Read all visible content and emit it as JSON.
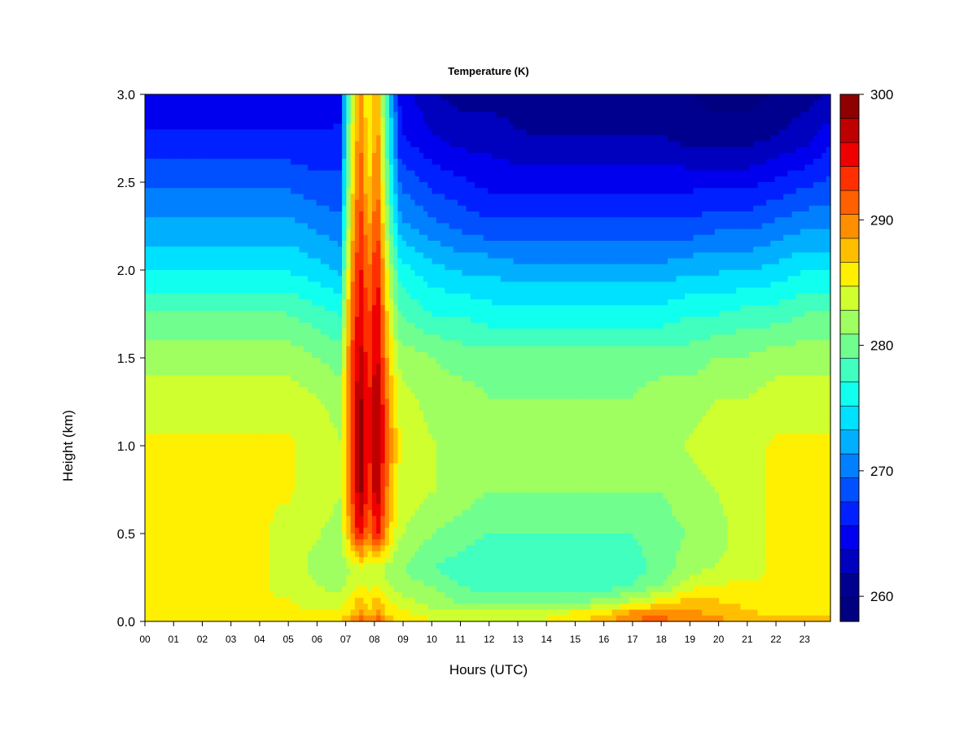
{
  "chart_data": {
    "type": "heatmap",
    "title": "Temperature (K)",
    "xlabel": "Hours (UTC)",
    "ylabel": "Height (km)",
    "xlim": [
      0,
      23.9
    ],
    "ylim": [
      0,
      3.0
    ],
    "x_ticks": [
      0,
      1,
      2,
      3,
      4,
      5,
      6,
      7,
      8,
      9,
      10,
      11,
      12,
      13,
      14,
      15,
      16,
      17,
      18,
      19,
      20,
      21,
      22,
      23
    ],
    "x_tick_labels": [
      "00",
      "01",
      "02",
      "03",
      "04",
      "05",
      "06",
      "07",
      "08",
      "09",
      "10",
      "11",
      "12",
      "13",
      "14",
      "15",
      "16",
      "17",
      "18",
      "19",
      "20",
      "21",
      "22",
      "23"
    ],
    "y_ticks": [
      0,
      0.5,
      1.0,
      1.5,
      2.0,
      2.5,
      3.0
    ],
    "y_tick_labels": [
      "0.0",
      "0.5",
      "1.0",
      "1.5",
      "2.0",
      "2.5",
      "3.0"
    ],
    "colorbar": {
      "range": [
        258,
        300
      ],
      "ticks": [
        260,
        270,
        280,
        290,
        300
      ],
      "tick_labels": [
        "260",
        "270",
        "280",
        "290",
        "300"
      ],
      "colors": [
        "#000080",
        "#00008f",
        "#0000bf",
        "#0000ef",
        "#0020ff",
        "#0050ff",
        "#0080ff",
        "#00b0ff",
        "#00e0ff",
        "#10ffef",
        "#40ffbf",
        "#70ff8f",
        "#a0ff60",
        "#d0ff30",
        "#ffef00",
        "#ffbf00",
        "#ff8f00",
        "#ff6000",
        "#ff3000",
        "#ef0000",
        "#bf0000",
        "#8f0000"
      ]
    },
    "grid": false,
    "temperature_grid": {
      "x_hours": [
        0,
        1,
        2,
        3,
        4,
        5,
        6,
        6.8,
        7.2,
        7.5,
        7.8,
        8.1,
        8.5,
        8.9,
        10,
        11,
        12,
        13,
        14,
        15,
        16,
        17,
        18,
        19,
        20,
        21,
        22,
        23,
        23.9
      ],
      "y_km": [
        0,
        0.05,
        0.1,
        0.2,
        0.3,
        0.5,
        0.75,
        1.0,
        1.25,
        1.5,
        1.75,
        2.0,
        2.25,
        2.5,
        2.75,
        3.0
      ],
      "values_K": [
        [
          286,
          286,
          286,
          286,
          286,
          286,
          286,
          287,
          290,
          292,
          290,
          292,
          288,
          286,
          285,
          284,
          284,
          284,
          285,
          286,
          288,
          291,
          291,
          290,
          289,
          288,
          287,
          287,
          287
        ],
        [
          285,
          285,
          286,
          285,
          285,
          285,
          285,
          285,
          287,
          289,
          287,
          289,
          286,
          285,
          284,
          283,
          283,
          283,
          284,
          285,
          286,
          289,
          290,
          289,
          288,
          287,
          286,
          286,
          286
        ],
        [
          285,
          285,
          285,
          285,
          285,
          285,
          284,
          284,
          286,
          288,
          286,
          288,
          285,
          284,
          282,
          281,
          281,
          281,
          281,
          281,
          282,
          284,
          286,
          288,
          287,
          286,
          285,
          285,
          285
        ],
        [
          285,
          285,
          285,
          285,
          285,
          284,
          283,
          282,
          284,
          285,
          284,
          285,
          283,
          282,
          281,
          279,
          278,
          278,
          278,
          278,
          278,
          279,
          281,
          284,
          285,
          285,
          285,
          285,
          285
        ],
        [
          285,
          285,
          285,
          285,
          285,
          284,
          282,
          281,
          283,
          284,
          283,
          284,
          282,
          281,
          279,
          278,
          277,
          277,
          277,
          277,
          277,
          278,
          280,
          282,
          283,
          284,
          285,
          285,
          285
        ],
        [
          285,
          285,
          286,
          285,
          285,
          284,
          283,
          282,
          290,
          296,
          290,
          295,
          287,
          283,
          281,
          280,
          279,
          279,
          279,
          279,
          279,
          279,
          280,
          281,
          282,
          284,
          285,
          285,
          285
        ],
        [
          285,
          285,
          286,
          285,
          285,
          285,
          284,
          283,
          292,
          299,
          293,
          298,
          289,
          284,
          283,
          282,
          281,
          281,
          281,
          281,
          281,
          281,
          281,
          282,
          283,
          284,
          285,
          285,
          285
        ],
        [
          285,
          285,
          285,
          285,
          285,
          285,
          284,
          283,
          293,
          299,
          294,
          299,
          290,
          285,
          283,
          282,
          282,
          282,
          282,
          282,
          282,
          282,
          282,
          283,
          284,
          284,
          285,
          285,
          285
        ],
        [
          284,
          284,
          284,
          284,
          284,
          284,
          283,
          282,
          293,
          299,
          294,
          299,
          289,
          284,
          282,
          282,
          281,
          281,
          281,
          281,
          281,
          281,
          282,
          282,
          283,
          283,
          284,
          284,
          284
        ],
        [
          282,
          282,
          282,
          282,
          282,
          282,
          281,
          280,
          292,
          297,
          293,
          297,
          287,
          282,
          281,
          280,
          280,
          280,
          280,
          280,
          280,
          280,
          280,
          280,
          281,
          281,
          282,
          282,
          282
        ],
        [
          279,
          279,
          279,
          279,
          279,
          279,
          278,
          277,
          291,
          296,
          292,
          296,
          285,
          279,
          277,
          277,
          276,
          276,
          276,
          276,
          276,
          276,
          276,
          277,
          277,
          278,
          278,
          279,
          279
        ],
        [
          275,
          275,
          275,
          275,
          275,
          275,
          274,
          273,
          289,
          295,
          290,
          295,
          283,
          276,
          274,
          273,
          273,
          272,
          272,
          272,
          272,
          272,
          272,
          273,
          273,
          273,
          274,
          275,
          275
        ],
        [
          272,
          272,
          272,
          272,
          272,
          272,
          271,
          270,
          287,
          294,
          288,
          293,
          280,
          272,
          270,
          269,
          268,
          268,
          268,
          268,
          268,
          268,
          268,
          268,
          269,
          269,
          270,
          271,
          271
        ],
        [
          269,
          269,
          269,
          269,
          269,
          269,
          268,
          268,
          285,
          292,
          286,
          291,
          278,
          269,
          267,
          266,
          265,
          265,
          265,
          265,
          265,
          265,
          265,
          265,
          265,
          265,
          266,
          267,
          268
        ],
        [
          266,
          266,
          266,
          266,
          266,
          266,
          266,
          266,
          284,
          291,
          285,
          290,
          276,
          266,
          264,
          263,
          263,
          262,
          262,
          262,
          262,
          262,
          262,
          261,
          261,
          261,
          262,
          263,
          265
        ],
        [
          264,
          264,
          264,
          264,
          264,
          264,
          264,
          265,
          283,
          290,
          284,
          289,
          275,
          265,
          262,
          261,
          261,
          261,
          260,
          260,
          260,
          260,
          260,
          260,
          259,
          259,
          260,
          261,
          262
        ]
      ]
    }
  }
}
